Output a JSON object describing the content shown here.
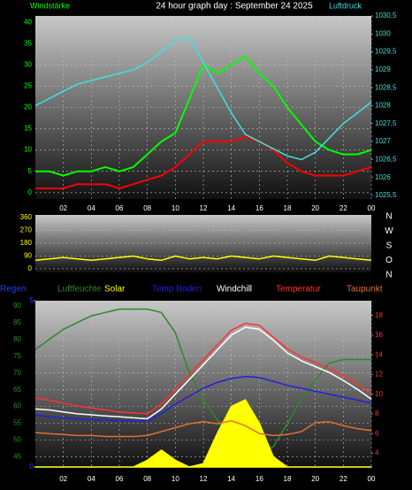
{
  "chart_data": [
    {
      "type": "line",
      "title": "24 hour graph day : September 24 2025",
      "y_label": "Windstärke",
      "y2_label": "Luftdruck",
      "x": [
        0,
        1,
        2,
        3,
        4,
        5,
        6,
        7,
        8,
        9,
        10,
        11,
        12,
        13,
        14,
        15,
        16,
        17,
        18,
        19,
        20,
        21,
        22,
        23,
        24
      ],
      "xlim": [
        0,
        24
      ],
      "xticks": [
        {
          "value": 2,
          "label": "02"
        },
        {
          "value": 4,
          "label": "04"
        },
        {
          "value": 6,
          "label": "06"
        },
        {
          "value": 8,
          "label": "08"
        },
        10,
        12,
        14,
        16,
        18,
        20,
        22,
        {
          "value": 24,
          "label": "00"
        }
      ],
      "ylim": [
        -1.5,
        41.5
      ],
      "yticks": [
        0,
        5,
        10,
        15,
        20,
        25,
        30,
        35,
        40
      ],
      "y2lim": [
        1025.4,
        1030.5
      ],
      "y2ticks": [
        {
          "value": 1025.5,
          "label": "1025,5"
        },
        1026,
        {
          "value": 1026.5,
          "label": "1026,5"
        },
        1027,
        {
          "value": 1027.5,
          "label": "1027,5"
        },
        1028,
        {
          "value": 1028.5,
          "label": "1028,5"
        },
        1029,
        {
          "value": 1029.5,
          "label": "1029,5"
        },
        1030,
        {
          "value": 1030.5,
          "label": "1030,5"
        }
      ],
      "grid": true,
      "series": [
        {
          "color": "#00ff00",
          "values": [
            5,
            5,
            4,
            5,
            5,
            6,
            5,
            6,
            9,
            12,
            14,
            22,
            30,
            28,
            30,
            32,
            28,
            25,
            20,
            16,
            12,
            10,
            9,
            9,
            10
          ]
        },
        {
          "color": "#ff0000",
          "values": [
            1,
            1,
            1,
            2,
            2,
            2,
            1,
            2,
            3,
            4,
            6,
            9,
            12,
            12,
            12,
            13,
            12,
            10,
            7,
            5,
            4,
            4,
            4,
            5,
            6
          ]
        },
        {
          "color": "#40e0e0",
          "axis": "y2",
          "values": [
            1028,
            1028.2,
            1028.4,
            1028.6,
            1028.7,
            1028.8,
            1028.9,
            1029,
            1029.2,
            1029.5,
            1029.8,
            1029.9,
            1029.2,
            1028.5,
            1027.8,
            1027.2,
            1027,
            1026.8,
            1026.6,
            1026.5,
            1026.7,
            1027.1,
            1027.5,
            1027.8,
            1028.1
          ]
        }
      ]
    },
    {
      "type": "line",
      "direction_labels": [
        "N",
        "W",
        "S",
        "O",
        "N"
      ],
      "x": [
        0,
        1,
        2,
        3,
        4,
        5,
        6,
        7,
        8,
        9,
        10,
        11,
        12,
        13,
        14,
        15,
        16,
        17,
        18,
        19,
        20,
        21,
        22,
        23,
        24
      ],
      "xlim": [
        0,
        24
      ],
      "ylim": [
        -25,
        378
      ],
      "yticks": [
        0,
        90,
        180,
        270,
        360
      ],
      "grid": true,
      "series": [
        {
          "color": "#ffff00",
          "values": [
            60,
            70,
            80,
            70,
            60,
            70,
            80,
            90,
            70,
            60,
            90,
            70,
            80,
            70,
            90,
            80,
            70,
            90,
            80,
            70,
            60,
            90,
            80,
            70,
            60
          ]
        }
      ]
    },
    {
      "type": "line",
      "x": [
        0,
        1,
        2,
        3,
        4,
        5,
        6,
        7,
        8,
        9,
        10,
        11,
        12,
        13,
        14,
        15,
        16,
        17,
        18,
        19,
        20,
        21,
        22,
        23,
        24
      ],
      "xlim": [
        0,
        24
      ],
      "xticks": [
        {
          "value": 2,
          "label": "02"
        },
        {
          "value": 4,
          "label": "04"
        },
        {
          "value": 6,
          "label": "06"
        },
        {
          "value": 8,
          "label": "08"
        },
        10,
        12,
        14,
        16,
        18,
        20,
        22,
        {
          "value": 24,
          "label": "00"
        }
      ],
      "ylim": [
        42,
        91.5
      ],
      "yticks": [
        45,
        50,
        55,
        60,
        65,
        70,
        75,
        80,
        85,
        90
      ],
      "y2lim": [
        2.6,
        19.5
      ],
      "y2ticks": [
        4,
        6,
        8,
        10,
        12,
        14,
        16,
        18
      ],
      "y3lim": [
        0,
        5
      ],
      "y3ticks": [
        0,
        5
      ],
      "grid": true,
      "series": [
        {
          "name": "Regen",
          "color": "#2040ff",
          "axis": "y3",
          "values": [
            0,
            0,
            0,
            0,
            0,
            0,
            0,
            0,
            0,
            0,
            0,
            0,
            0,
            0,
            0,
            0,
            0,
            0,
            0,
            0,
            0,
            0,
            0,
            0,
            0
          ]
        },
        {
          "name": "Luftfeuchte",
          "color": "#2a8a2a",
          "axis": "y",
          "values": [
            77,
            80,
            83,
            85,
            87,
            88,
            89,
            89,
            89,
            88,
            82,
            70,
            62,
            56,
            50,
            47,
            47,
            48,
            55,
            62,
            68,
            73,
            74,
            74,
            74
          ]
        },
        {
          "name": "Solar",
          "color": "#ffff00",
          "axis": "y",
          "fill": true,
          "values": [
            42,
            42,
            42,
            42,
            42,
            42,
            42,
            42,
            44,
            47,
            44,
            42,
            43,
            52,
            60,
            62,
            55,
            45,
            42,
            42,
            42,
            42,
            42,
            42,
            42
          ]
        },
        {
          "name": "Temp Boden",
          "color": "#2020e0",
          "axis": "y2",
          "values": [
            7.9,
            7.7,
            7.6,
            7.5,
            7.4,
            7.4,
            7.3,
            7.3,
            7.3,
            8,
            9,
            9.8,
            10.6,
            11.2,
            11.6,
            11.8,
            11.7,
            11.3,
            10.9,
            10.6,
            10.3,
            10,
            9.7,
            9.4,
            9.1
          ]
        },
        {
          "name": "Windchill",
          "color": "#ffffff",
          "axis": "y2",
          "values": [
            8.5,
            8.4,
            8.2,
            8,
            7.9,
            7.8,
            7.7,
            7.6,
            7.5,
            8.5,
            10,
            11.5,
            13,
            14.5,
            16,
            16.8,
            16.6,
            15.5,
            14.2,
            13.4,
            12.8,
            12.2,
            11.4,
            10.5,
            9.5
          ]
        },
        {
          "name": "Temperatur",
          "color": "#ff3030",
          "axis": "y2",
          "values": [
            9.6,
            9.4,
            9.1,
            8.8,
            8.6,
            8.4,
            8.2,
            8.1,
            8,
            9,
            10.5,
            12,
            13.5,
            15,
            16.5,
            17.2,
            17,
            15.8,
            14.6,
            13.8,
            13.2,
            12.6,
            11.9,
            11,
            10.1
          ]
        },
        {
          "name": "Taupunkt",
          "color": "#e07030",
          "axis": "y2",
          "values": [
            6.1,
            6,
            5.9,
            5.8,
            5.8,
            5.7,
            5.7,
            5.7,
            5.8,
            6.2,
            6.6,
            7,
            7.2,
            7,
            7.3,
            6.8,
            6,
            5.8,
            5.9,
            6.2,
            7.1,
            7.2,
            6.8,
            6.5,
            6.3
          ]
        }
      ]
    }
  ]
}
